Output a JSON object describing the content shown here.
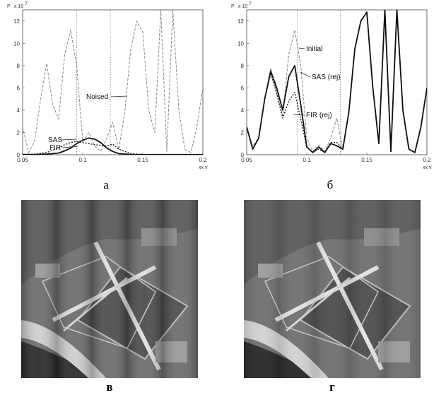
{
  "chart_data": [
    {
      "type": "line",
      "panel": "а",
      "ylabel": "P",
      "yscale_label": "x 10",
      "yscale_exp": "7",
      "xlabel": "xx v",
      "xlim": [
        0.05,
        0.2
      ],
      "ylim": [
        0,
        13
      ],
      "xticks": [
        "0.05",
        "0.1",
        "0.15",
        "0.2"
      ],
      "yticks": [
        "0",
        "2",
        "4",
        "6",
        "8",
        "10",
        "12"
      ],
      "vlines": [
        0.095,
        0.123
      ],
      "annotations": [
        "Noised",
        "SAS",
        "FIR"
      ],
      "series": [
        {
          "name": "Noised",
          "style": "dashed",
          "x": [
            0.05,
            0.055,
            0.06,
            0.065,
            0.07,
            0.075,
            0.08,
            0.085,
            0.09,
            0.095,
            0.1,
            0.105,
            0.11,
            0.115,
            0.12,
            0.125,
            0.13,
            0.135,
            0.14,
            0.145,
            0.15,
            0.155,
            0.16,
            0.165,
            0.17,
            0.175,
            0.18,
            0.185,
            0.19,
            0.195,
            0.2
          ],
          "y": [
            2.5,
            0.2,
            1.2,
            5,
            8.2,
            4.5,
            3.2,
            9,
            11.2,
            8,
            1.2,
            2,
            0.8,
            0.3,
            1.5,
            2.9,
            0.5,
            3.8,
            9.5,
            12,
            11,
            4,
            2,
            13,
            0.3,
            13,
            4,
            0.5,
            0.2,
            2.5,
            6
          ]
        },
        {
          "name": "SAS",
          "style": "solid",
          "x": [
            0.05,
            0.06,
            0.07,
            0.08,
            0.085,
            0.09,
            0.095,
            0.1,
            0.105,
            0.11,
            0.115,
            0.12,
            0.125,
            0.13,
            0.14,
            0.15,
            0.16,
            0.17,
            0.18,
            0.19,
            0.2
          ],
          "y": [
            0.02,
            0.02,
            0.05,
            0.15,
            0.35,
            0.6,
            1.0,
            1.3,
            1.5,
            1.4,
            1.1,
            0.6,
            0.3,
            0.1,
            0.02,
            0.01,
            0.01,
            0.01,
            0.01,
            0.01,
            0.01
          ]
        },
        {
          "name": "FIR",
          "style": "dotted",
          "x": [
            0.05,
            0.06,
            0.07,
            0.08,
            0.085,
            0.09,
            0.095,
            0.1,
            0.105,
            0.11,
            0.115,
            0.12,
            0.125,
            0.13,
            0.14,
            0.15,
            0.16,
            0.17,
            0.18,
            0.19,
            0.2
          ],
          "y": [
            0.02,
            0.05,
            0.2,
            0.6,
            0.9,
            1.1,
            1.2,
            1.1,
            1.0,
            0.9,
            0.85,
            0.8,
            0.95,
            0.5,
            0.1,
            0.02,
            0.01,
            0.01,
            0.01,
            0.01,
            0.01
          ]
        }
      ]
    },
    {
      "type": "line",
      "panel": "б",
      "ylabel": "P",
      "yscale_label": "x 10",
      "yscale_exp": "7",
      "xlabel": "xx v",
      "xlim": [
        0.05,
        0.2
      ],
      "ylim": [
        0,
        13
      ],
      "xticks": [
        "0.05",
        "0.1",
        "0.15",
        "0.2"
      ],
      "yticks": [
        "0",
        "2",
        "4",
        "6",
        "8",
        "10",
        "12"
      ],
      "vlines": [
        0.092,
        0.128
      ],
      "annotations": [
        "Initial",
        "SAS (rej)",
        "FIR (rej)"
      ],
      "series": [
        {
          "name": "Initial",
          "style": "dashed",
          "x": [
            0.05,
            0.055,
            0.06,
            0.065,
            0.07,
            0.075,
            0.08,
            0.085,
            0.09,
            0.095,
            0.1,
            0.105,
            0.11,
            0.115,
            0.12,
            0.125,
            0.13,
            0.135,
            0.14,
            0.145,
            0.15,
            0.155,
            0.16,
            0.165,
            0.17,
            0.175,
            0.18,
            0.185,
            0.19,
            0.195,
            0.2
          ],
          "y": [
            2.5,
            0.8,
            1.5,
            5,
            7.8,
            5.5,
            3.5,
            9,
            11.2,
            8,
            1.5,
            0.3,
            0.9,
            0.3,
            1.5,
            3.3,
            0.5,
            3.8,
            9.5,
            12,
            12.8,
            6,
            1,
            13,
            0.3,
            13,
            4,
            0.5,
            0.2,
            2.5,
            6
          ]
        },
        {
          "name": "SAS (rej)",
          "style": "solid",
          "x": [
            0.05,
            0.055,
            0.06,
            0.065,
            0.07,
            0.075,
            0.08,
            0.085,
            0.09,
            0.095,
            0.1,
            0.105,
            0.11,
            0.115,
            0.12,
            0.125,
            0.13,
            0.135,
            0.14,
            0.145,
            0.15,
            0.155,
            0.16,
            0.165,
            0.17,
            0.175,
            0.18,
            0.185,
            0.19,
            0.195,
            0.2
          ],
          "y": [
            2.5,
            0.5,
            1.5,
            5,
            7.5,
            6,
            4,
            7,
            8,
            4.5,
            0.7,
            0.2,
            0.7,
            0.2,
            1,
            0.8,
            0.5,
            3.8,
            9.5,
            12,
            12.8,
            6,
            1,
            13,
            0.3,
            13,
            4,
            0.5,
            0.2,
            2.5,
            6
          ]
        },
        {
          "name": "FIR (rej)",
          "style": "dotted",
          "x": [
            0.05,
            0.055,
            0.06,
            0.065,
            0.07,
            0.075,
            0.08,
            0.085,
            0.09,
            0.095,
            0.1,
            0.105,
            0.11,
            0.115,
            0.12,
            0.125,
            0.13,
            0.135,
            0.14,
            0.145,
            0.15,
            0.155,
            0.16,
            0.165,
            0.17,
            0.175,
            0.18,
            0.185,
            0.19,
            0.195,
            0.2
          ],
          "y": [
            2.5,
            0.5,
            1.5,
            5,
            7.3,
            5.5,
            3.3,
            4.8,
            5.6,
            3.2,
            0.7,
            0.2,
            0.5,
            0.2,
            1.1,
            1.1,
            0.5,
            3.8,
            9.5,
            12,
            12.8,
            6,
            1,
            13,
            0.3,
            13,
            4,
            0.5,
            0.2,
            2.5,
            6
          ]
        }
      ]
    }
  ],
  "panels": {
    "a": "а",
    "b": "б",
    "c": "в",
    "d": "г"
  },
  "colors": {
    "line": "#111111",
    "dashed": "#888888",
    "vline": "#777777",
    "axis": "#444444"
  }
}
